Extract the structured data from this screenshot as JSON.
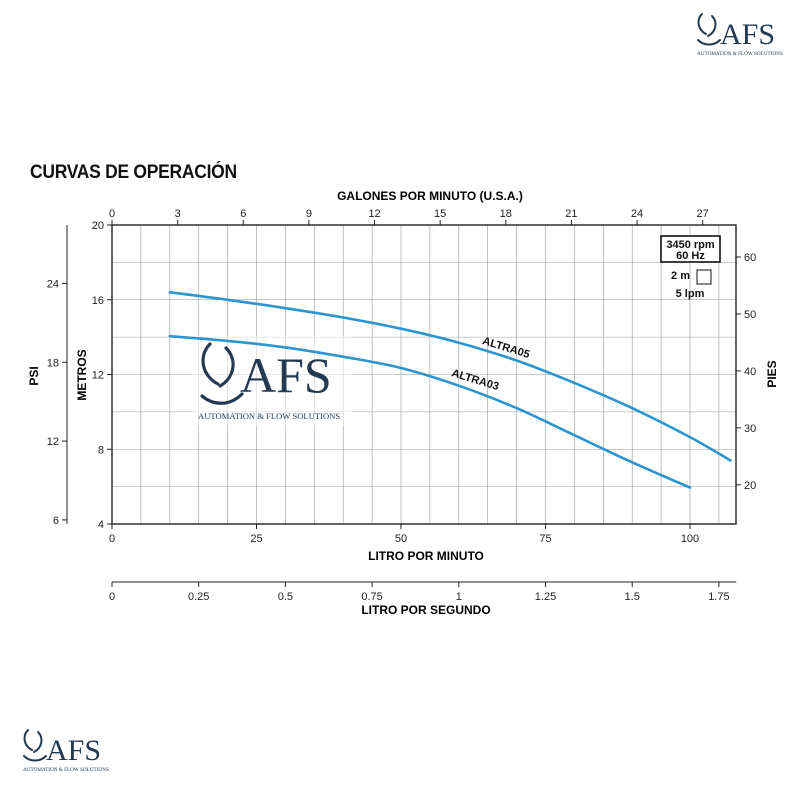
{
  "brand": {
    "name": "AFS",
    "tagline": "AUTOMATION & FLOW SOLUTIONS"
  },
  "colors": {
    "curve": "#2b95cf",
    "brand": "#233a52",
    "grid": "#9a9a9a"
  },
  "page_title": "CURVAS DE OPERACIÓN",
  "chart_data": {
    "type": "line",
    "title": "CURVAS DE OPERACIÓN",
    "xlabel": "LITRO POR MINUTO",
    "xlim": [
      0,
      108
    ],
    "x_ticks": [
      0,
      25,
      50,
      75,
      100
    ],
    "ylabel": "METROS",
    "ylim": [
      4,
      20
    ],
    "y_ticks": [
      4,
      8,
      12,
      16,
      20
    ],
    "grid": true,
    "x_top": {
      "label": "GALONES POR MINUTO (U.S.A.)",
      "ticks": [
        0,
        3,
        6,
        9,
        12,
        15,
        18,
        21,
        24,
        27
      ]
    },
    "x_bottom2": {
      "label": "LITRO POR SEGUNDO",
      "ticks": [
        "0",
        "0.25",
        "0.5",
        "0.75",
        "1",
        "1.25",
        "1.5",
        "1.75"
      ]
    },
    "y_left2": {
      "label": "PSI",
      "ticks": [
        6,
        12,
        18,
        24
      ]
    },
    "y_right": {
      "label": "PIES",
      "ticks": [
        20,
        30,
        40,
        50,
        60
      ]
    },
    "legend": {
      "rpm": "3450 rpm",
      "hz": "60 Hz",
      "grid_m": "2 m",
      "grid_lpm": "5 lpm",
      "position": "top-right"
    },
    "series": [
      {
        "name": "ALTRA05",
        "x": [
          10,
          20,
          30,
          40,
          50,
          60,
          70,
          80,
          90,
          100,
          107
        ],
        "y": [
          16.4,
          16.0,
          15.55,
          15.05,
          14.45,
          13.7,
          12.75,
          11.55,
          10.2,
          8.65,
          7.4
        ]
      },
      {
        "name": "ALTRA03",
        "x": [
          10,
          20,
          30,
          40,
          50,
          60,
          70,
          80,
          90,
          100
        ],
        "y": [
          14.05,
          13.8,
          13.45,
          12.95,
          12.35,
          11.4,
          10.2,
          8.75,
          7.3,
          5.95
        ]
      }
    ]
  }
}
